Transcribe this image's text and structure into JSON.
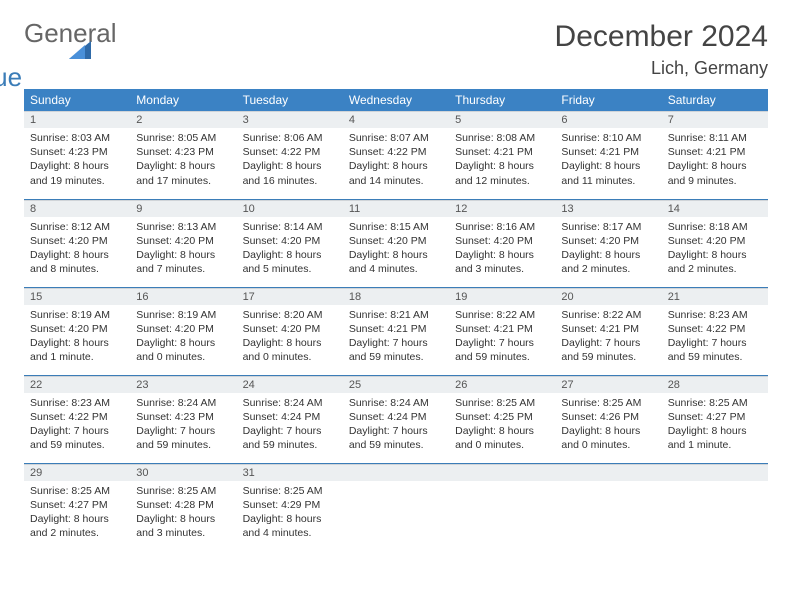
{
  "brand": {
    "general": "General",
    "blue": "Blue"
  },
  "title": "December 2024",
  "location": "Lich, Germany",
  "weekday_labels": [
    "Sunday",
    "Monday",
    "Tuesday",
    "Wednesday",
    "Thursday",
    "Friday",
    "Saturday"
  ],
  "colors": {
    "header_bg": "#3b82c4",
    "border": "#3b7db8",
    "daynum_bg": "#eceff1"
  },
  "font": {
    "body_pt": 10.5,
    "title_pt": 30,
    "location_pt": 18,
    "th_pt": 12
  },
  "days": [
    {
      "n": "1",
      "sr": "8:03 AM",
      "ss": "4:23 PM",
      "dl": "8 hours and 19 minutes."
    },
    {
      "n": "2",
      "sr": "8:05 AM",
      "ss": "4:23 PM",
      "dl": "8 hours and 17 minutes."
    },
    {
      "n": "3",
      "sr": "8:06 AM",
      "ss": "4:22 PM",
      "dl": "8 hours and 16 minutes."
    },
    {
      "n": "4",
      "sr": "8:07 AM",
      "ss": "4:22 PM",
      "dl": "8 hours and 14 minutes."
    },
    {
      "n": "5",
      "sr": "8:08 AM",
      "ss": "4:21 PM",
      "dl": "8 hours and 12 minutes."
    },
    {
      "n": "6",
      "sr": "8:10 AM",
      "ss": "4:21 PM",
      "dl": "8 hours and 11 minutes."
    },
    {
      "n": "7",
      "sr": "8:11 AM",
      "ss": "4:21 PM",
      "dl": "8 hours and 9 minutes."
    },
    {
      "n": "8",
      "sr": "8:12 AM",
      "ss": "4:20 PM",
      "dl": "8 hours and 8 minutes."
    },
    {
      "n": "9",
      "sr": "8:13 AM",
      "ss": "4:20 PM",
      "dl": "8 hours and 7 minutes."
    },
    {
      "n": "10",
      "sr": "8:14 AM",
      "ss": "4:20 PM",
      "dl": "8 hours and 5 minutes."
    },
    {
      "n": "11",
      "sr": "8:15 AM",
      "ss": "4:20 PM",
      "dl": "8 hours and 4 minutes."
    },
    {
      "n": "12",
      "sr": "8:16 AM",
      "ss": "4:20 PM",
      "dl": "8 hours and 3 minutes."
    },
    {
      "n": "13",
      "sr": "8:17 AM",
      "ss": "4:20 PM",
      "dl": "8 hours and 2 minutes."
    },
    {
      "n": "14",
      "sr": "8:18 AM",
      "ss": "4:20 PM",
      "dl": "8 hours and 2 minutes."
    },
    {
      "n": "15",
      "sr": "8:19 AM",
      "ss": "4:20 PM",
      "dl": "8 hours and 1 minute."
    },
    {
      "n": "16",
      "sr": "8:19 AM",
      "ss": "4:20 PM",
      "dl": "8 hours and 0 minutes."
    },
    {
      "n": "17",
      "sr": "8:20 AM",
      "ss": "4:20 PM",
      "dl": "8 hours and 0 minutes."
    },
    {
      "n": "18",
      "sr": "8:21 AM",
      "ss": "4:21 PM",
      "dl": "7 hours and 59 minutes."
    },
    {
      "n": "19",
      "sr": "8:22 AM",
      "ss": "4:21 PM",
      "dl": "7 hours and 59 minutes."
    },
    {
      "n": "20",
      "sr": "8:22 AM",
      "ss": "4:21 PM",
      "dl": "7 hours and 59 minutes."
    },
    {
      "n": "21",
      "sr": "8:23 AM",
      "ss": "4:22 PM",
      "dl": "7 hours and 59 minutes."
    },
    {
      "n": "22",
      "sr": "8:23 AM",
      "ss": "4:22 PM",
      "dl": "7 hours and 59 minutes."
    },
    {
      "n": "23",
      "sr": "8:24 AM",
      "ss": "4:23 PM",
      "dl": "7 hours and 59 minutes."
    },
    {
      "n": "24",
      "sr": "8:24 AM",
      "ss": "4:24 PM",
      "dl": "7 hours and 59 minutes."
    },
    {
      "n": "25",
      "sr": "8:24 AM",
      "ss": "4:24 PM",
      "dl": "7 hours and 59 minutes."
    },
    {
      "n": "26",
      "sr": "8:25 AM",
      "ss": "4:25 PM",
      "dl": "8 hours and 0 minutes."
    },
    {
      "n": "27",
      "sr": "8:25 AM",
      "ss": "4:26 PM",
      "dl": "8 hours and 0 minutes."
    },
    {
      "n": "28",
      "sr": "8:25 AM",
      "ss": "4:27 PM",
      "dl": "8 hours and 1 minute."
    },
    {
      "n": "29",
      "sr": "8:25 AM",
      "ss": "4:27 PM",
      "dl": "8 hours and 2 minutes."
    },
    {
      "n": "30",
      "sr": "8:25 AM",
      "ss": "4:28 PM",
      "dl": "8 hours and 3 minutes."
    },
    {
      "n": "31",
      "sr": "8:25 AM",
      "ss": "4:29 PM",
      "dl": "8 hours and 4 minutes."
    }
  ],
  "labels": {
    "sunrise": "Sunrise:",
    "sunset": "Sunset:",
    "daylight": "Daylight:"
  }
}
